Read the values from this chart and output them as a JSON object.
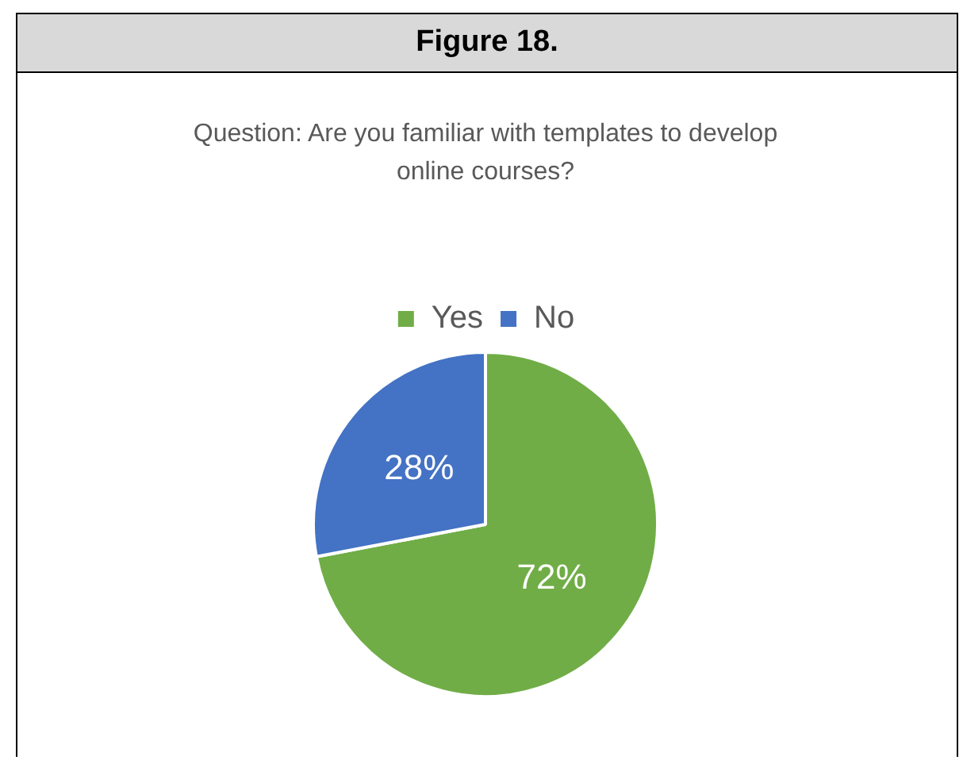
{
  "chart_data": {
    "type": "pie",
    "title": "Figure 18.",
    "subtitle": "Question: Are you familiar with templates to develop online courses?",
    "categories": [
      "Yes",
      "No"
    ],
    "values": [
      72,
      28
    ],
    "colors": [
      "#70ad47",
      "#4472c4"
    ],
    "legend": "top",
    "value_labels": [
      "72%",
      "28%"
    ]
  }
}
